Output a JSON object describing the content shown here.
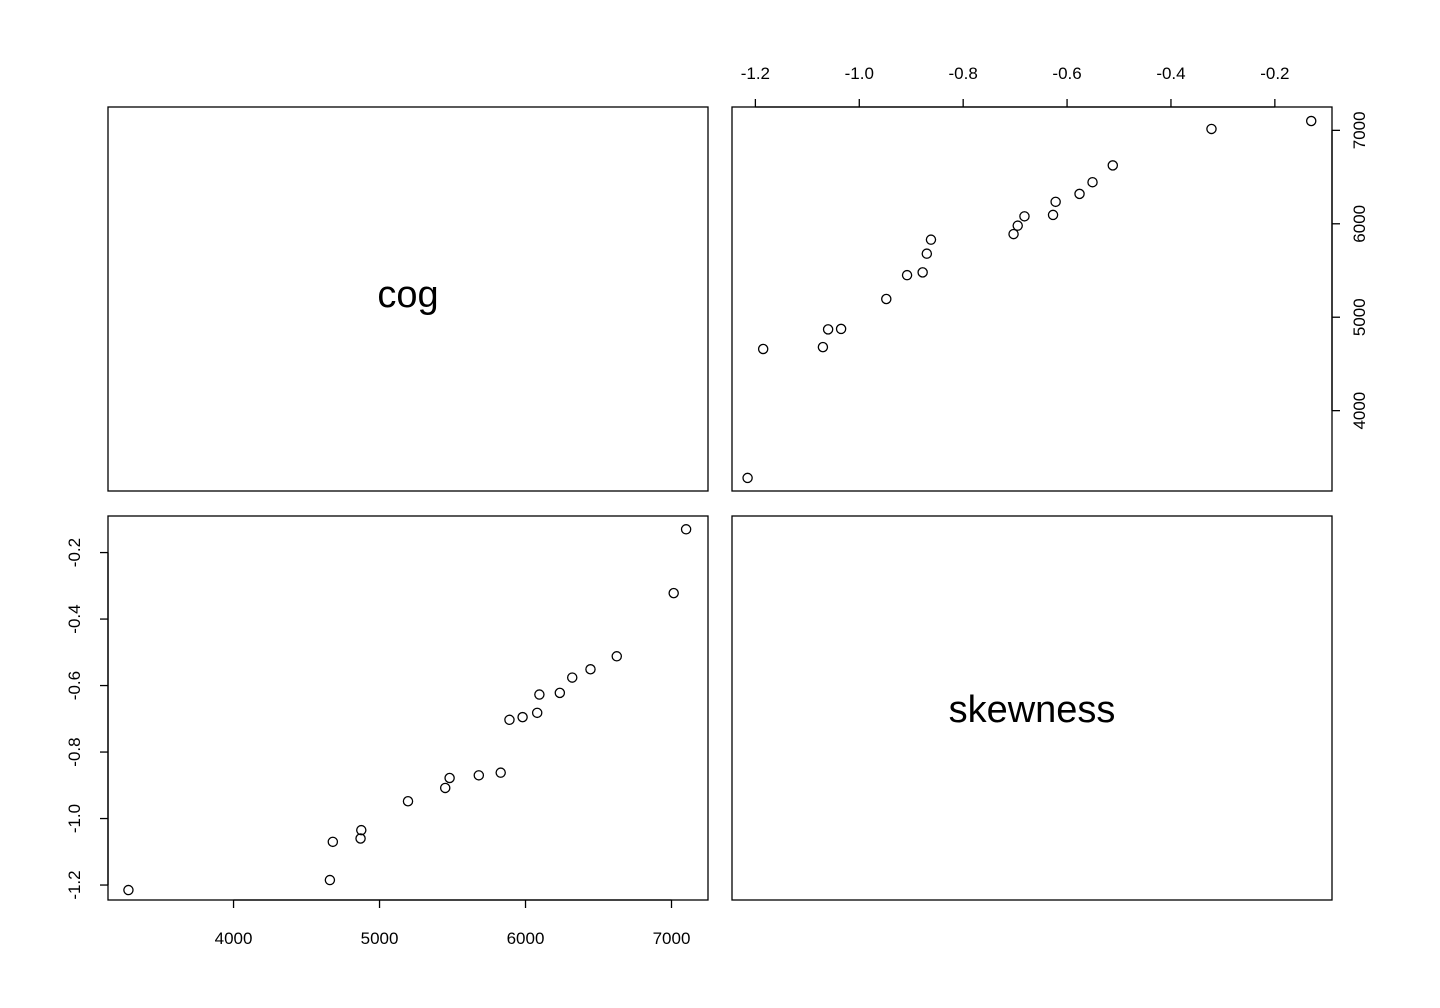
{
  "chart_data": {
    "type": "scatter",
    "layout": "scatterplot-matrix",
    "variables": [
      "cog",
      "skewness"
    ],
    "cog_ticks": [
      4000,
      5000,
      6000,
      7000
    ],
    "cog_tick_labels": [
      "4000",
      "5000",
      "6000",
      "7000"
    ],
    "skewness_ticks": [
      -1.2,
      -1.0,
      -0.8,
      -0.6,
      -0.4,
      -0.2
    ],
    "skewness_tick_labels": [
      "-1.2",
      "-1.0",
      "-0.8",
      "-0.6",
      "-0.4",
      "-0.2"
    ],
    "cog_range": [
      3140,
      7250
    ],
    "skewness_range": [
      -1.245,
      -0.09
    ],
    "points": [
      {
        "cog": 3280,
        "skewness": -1.215
      },
      {
        "cog": 4660,
        "skewness": -1.185
      },
      {
        "cog": 4680,
        "skewness": -1.07
      },
      {
        "cog": 4870,
        "skewness": -1.06
      },
      {
        "cog": 4875,
        "skewness": -1.035
      },
      {
        "cog": 5195,
        "skewness": -0.948
      },
      {
        "cog": 5450,
        "skewness": -0.908
      },
      {
        "cog": 5480,
        "skewness": -0.878
      },
      {
        "cog": 5680,
        "skewness": -0.87
      },
      {
        "cog": 5830,
        "skewness": -0.862
      },
      {
        "cog": 5890,
        "skewness": -0.703
      },
      {
        "cog": 5980,
        "skewness": -0.695
      },
      {
        "cog": 6080,
        "skewness": -0.682
      },
      {
        "cog": 6095,
        "skewness": -0.627
      },
      {
        "cog": 6235,
        "skewness": -0.622
      },
      {
        "cog": 6320,
        "skewness": -0.576
      },
      {
        "cog": 6445,
        "skewness": -0.551
      },
      {
        "cog": 6625,
        "skewness": -0.512
      },
      {
        "cog": 7015,
        "skewness": -0.322
      },
      {
        "cog": 7100,
        "skewness": -0.13
      }
    ]
  }
}
